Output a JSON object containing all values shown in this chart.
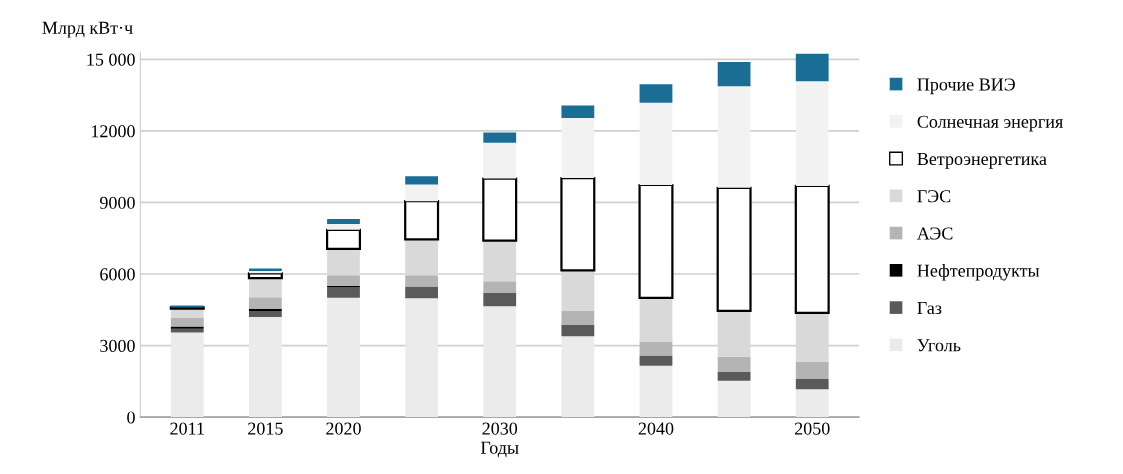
{
  "chart_data": {
    "type": "bar",
    "stacked": true,
    "ylabel": "Млрд кВт·ч",
    "xlabel": "Годы",
    "categories": [
      "2011",
      "2015",
      "2020",
      null,
      "2030",
      null,
      "2040",
      null,
      "2050"
    ],
    "series": [
      {
        "name": "Уголь",
        "color": "#ebebeb",
        "values": [
          3550,
          4200,
          5000,
          4980,
          4650,
          3390,
          2150,
          1520,
          1170
        ]
      },
      {
        "name": "Газ",
        "color": "#5a5a5a",
        "values": [
          150,
          250,
          450,
          500,
          550,
          470,
          430,
          370,
          430
        ]
      },
      {
        "name": "Нефтепродукты",
        "color": "#000000",
        "values": [
          100,
          80,
          50,
          null,
          null,
          null,
          null,
          null,
          null
        ]
      },
      {
        "name": "АЭС",
        "color": "#b4b4b4",
        "values": [
          350,
          500,
          450,
          470,
          500,
          590,
          590,
          640,
          720
        ]
      },
      {
        "name": "ГЭС",
        "color": "#d9d9d9",
        "values": [
          400,
          800,
          1100,
          1500,
          1700,
          1700,
          1830,
          1920,
          2050
        ]
      },
      {
        "name": "Ветроэнергетика",
        "color": "#ffffff",
        "values": [
          50,
          200,
          800,
          1600,
          2600,
          3870,
          4730,
          5160,
          5320
        ]
      },
      {
        "name": "Солнечная энергия",
        "color": "#f2f2f2",
        "values": [
          0,
          100,
          250,
          700,
          1500,
          2520,
          3450,
          4260,
          4390
        ]
      },
      {
        "name": "Прочие ВИЭ",
        "color": "#1a6e96",
        "values": [
          80,
          100,
          200,
          350,
          430,
          520,
          770,
          1020,
          1150
        ]
      }
    ],
    "ylim": [
      0,
      15300
    ],
    "yticks": [
      0,
      3000,
      6000,
      9000,
      12000,
      {
        "value": 15000,
        "label": "15 000"
      }
    ],
    "grid": "y",
    "legend": "right"
  }
}
